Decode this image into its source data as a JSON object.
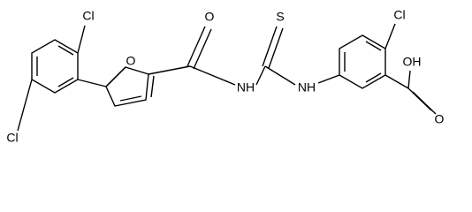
{
  "atoms": [
    {
      "label": "Cl"
    },
    {
      "label": "Cl"
    },
    {
      "label": "O"
    },
    {
      "label": "O"
    },
    {
      "label": "NH"
    },
    {
      "label": "S"
    },
    {
      "label": "NH"
    },
    {
      "label": "Cl"
    },
    {
      "label": "OH"
    },
    {
      "label": "O"
    }
  ]
}
